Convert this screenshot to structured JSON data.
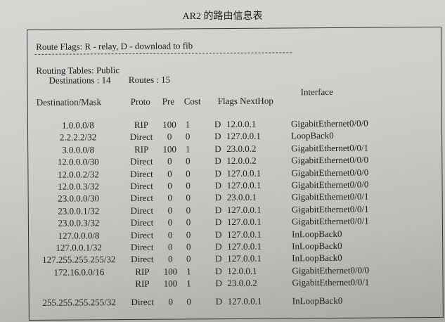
{
  "title": "AR2 的路由信息表",
  "route_flags": "Route Flags: R - relay, D - download to fib",
  "routing_tables": "Routing Tables: Public",
  "destinations": "Destinations : 14",
  "routes": "Routes : 15",
  "headers": {
    "dest": "Destination/Mask",
    "proto": "Proto",
    "pre": "Pre",
    "cost": "Cost",
    "flags_nexthop": "Flags NextHop",
    "iface": "Interface"
  },
  "rows": [
    {
      "dest": "1.0.0.0/8",
      "proto": "RIP",
      "pre": "100",
      "cost": "1",
      "flags": "D",
      "nexthop": "12.0.0.1",
      "iface": "GigabitEthernet0/0/0"
    },
    {
      "dest": "2.2.2.2/32",
      "proto": "Direct",
      "pre": "0",
      "cost": "0",
      "flags": "D",
      "nexthop": "127.0.0.1",
      "iface": "LoopBack0"
    },
    {
      "dest": "3.0.0.0/8",
      "proto": "RIP",
      "pre": "100",
      "cost": "1",
      "flags": "D",
      "nexthop": "23.0.0.2",
      "iface": "GigabitEthernet0/0/1"
    },
    {
      "dest": "12.0.0.0/30",
      "proto": "Direct",
      "pre": "0",
      "cost": "0",
      "flags": "D",
      "nexthop": "12.0.0.2",
      "iface": "GigabitEthernet0/0/0"
    },
    {
      "dest": "12.0.0.2/32",
      "proto": "Direct",
      "pre": "0",
      "cost": "0",
      "flags": "D",
      "nexthop": "127.0.0.1",
      "iface": "GigabitEthernet0/0/0"
    },
    {
      "dest": "12.0.0.3/32",
      "proto": "Direct",
      "pre": "0",
      "cost": "0",
      "flags": "D",
      "nexthop": "127.0.0.1",
      "iface": "GigabitEthernet0/0/0"
    },
    {
      "dest": "23.0.0.0/30",
      "proto": "Direct",
      "pre": "0",
      "cost": "0",
      "flags": "D",
      "nexthop": "23.0.0.1",
      "iface": "GigabitEthernet0/0/1"
    },
    {
      "dest": "23.0.0.1/32",
      "proto": "Direct",
      "pre": "0",
      "cost": "0",
      "flags": "D",
      "nexthop": "127.0.0.1",
      "iface": "GigabitEthernet0/0/1"
    },
    {
      "dest": "23.0.0.3/32",
      "proto": "Direct",
      "pre": "0",
      "cost": "0",
      "flags": "D",
      "nexthop": "127.0.0.1",
      "iface": "GigabitEthernet0/0/1"
    },
    {
      "dest": "127.0.0.0/8",
      "proto": "Direct",
      "pre": "0",
      "cost": "0",
      "flags": "D",
      "nexthop": "127.0.0.1",
      "iface": "InLoopBack0"
    },
    {
      "dest": "127.0.0.1/32",
      "proto": "Direct",
      "pre": "0",
      "cost": "0",
      "flags": "D",
      "nexthop": "127.0.0.1",
      "iface": "InLoopBack0"
    },
    {
      "dest": "127.255.255.255/32",
      "proto": "Direct",
      "pre": "0",
      "cost": "0",
      "flags": "D",
      "nexthop": "127.0.0.1",
      "iface": "InLoopBack0"
    },
    {
      "dest": "172.16.0.0/16",
      "proto": "RIP",
      "pre": "100",
      "cost": "1",
      "flags": "D",
      "nexthop": "12.0.0.1",
      "iface": "GigabitEthernet0/0/0"
    },
    {
      "dest": "",
      "proto": "RIP",
      "pre": "100",
      "cost": "1",
      "flags": "D",
      "nexthop": "23.0.0.2",
      "iface": "GigabitEthernet0/0/1"
    },
    {
      "dest": "255.255.255.255/32",
      "proto": "Direct",
      "pre": "0",
      "cost": "0",
      "flags": "D",
      "nexthop": "127.0.0.1",
      "iface": "InLoopBack0"
    }
  ]
}
